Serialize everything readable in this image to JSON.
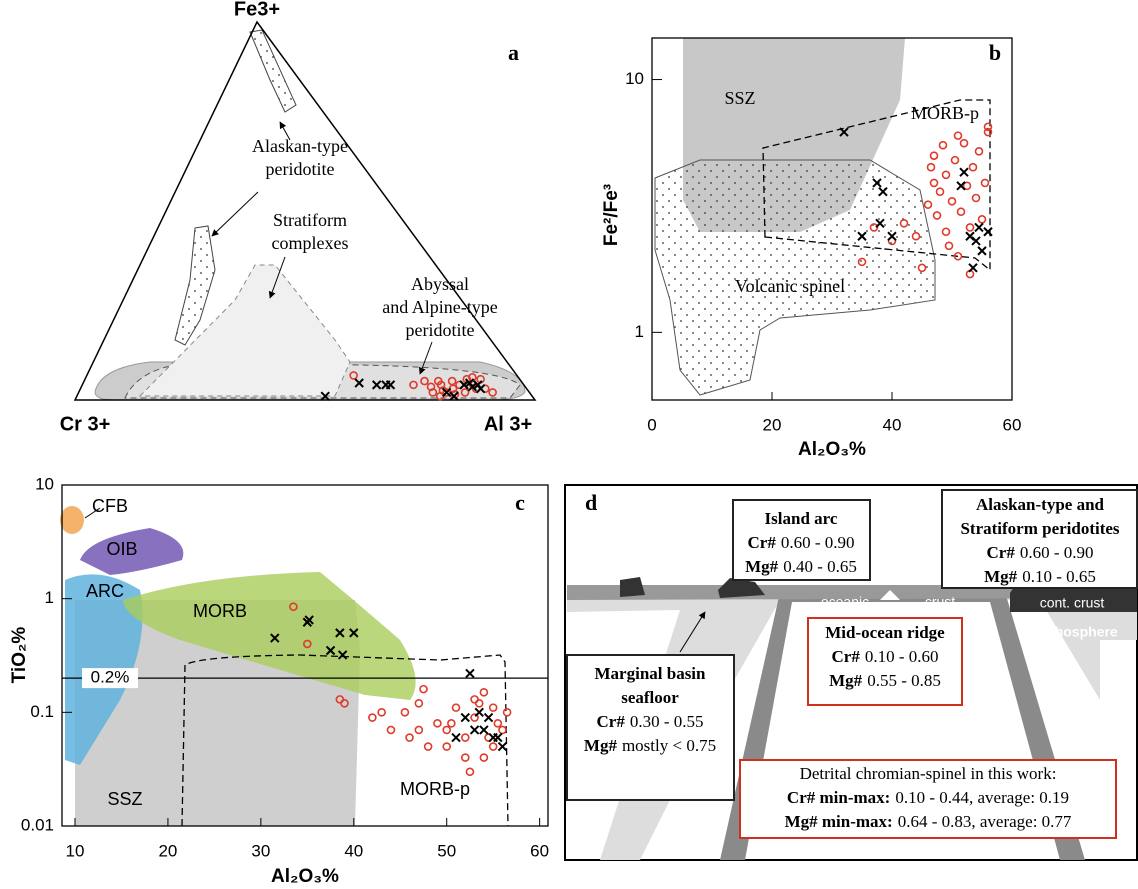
{
  "chart_data": [
    {
      "type": "ternary",
      "panel_label": "a",
      "corners": {
        "top": "Fe3+",
        "left": "Cr 3+",
        "right": "Al 3+"
      },
      "annotations": [
        [
          "Alaskan-type",
          "peridotite"
        ],
        [
          "Stratiform",
          "complexes"
        ],
        [
          "Abyssal",
          "and Alpine-type",
          "peridotite"
        ]
      ],
      "series": [
        {
          "marker": "circle",
          "color": "#e03a2a",
          "al": [
            58,
            72,
            74,
            76,
            77,
            78,
            79,
            80,
            81,
            82,
            83,
            84,
            85,
            86,
            82,
            79,
            77,
            88,
            90,
            84,
            86,
            80
          ],
          "fe": [
            6.5,
            4,
            5,
            3.5,
            5,
            4,
            2.5,
            5,
            3,
            4,
            5.5,
            2,
            4,
            3,
            1.5,
            1,
            2,
            3,
            2,
            6,
            5.5,
            2
          ]
        },
        {
          "marker": "cross",
          "color": "#000000",
          "al": [
            54,
            60,
            64,
            66,
            67,
            80,
            83,
            84,
            85,
            86,
            87,
            82
          ],
          "fe": [
            1,
            4.5,
            4,
            4,
            4,
            2,
            4,
            4.5,
            3.5,
            4,
            3,
            1
          ]
        }
      ]
    },
    {
      "type": "scatter",
      "panel_label": "b",
      "x_label": "Al₂O₃%",
      "y_label": "Fe²/Fe³",
      "xlim": [
        0,
        60
      ],
      "xticks": [
        0,
        20,
        40,
        60
      ],
      "ylim": [
        0.54,
        14.6
      ],
      "yticks": [
        1,
        10
      ],
      "ylog": true,
      "region_labels": [
        "SSZ",
        "MORB-p",
        "Volcanic spinel"
      ],
      "series": [
        {
          "marker": "circle",
          "color": "#e03a2a",
          "x": [
            35,
            37,
            40,
            42,
            44,
            45,
            46,
            46.5,
            47,
            47.5,
            48,
            48.5,
            49,
            49.5,
            50,
            50.5,
            51,
            51.5,
            52,
            52.5,
            53,
            53.5,
            54,
            54.5,
            55,
            55.5,
            56,
            56,
            47,
            49,
            51,
            53
          ],
          "values": [
            1.9,
            2.6,
            2.3,
            2.7,
            2.4,
            1.8,
            3.2,
            4.5,
            5.0,
            2.9,
            3.6,
            5.5,
            4.2,
            2.2,
            3.3,
            4.8,
            2.0,
            3.0,
            5.6,
            3.8,
            2.6,
            4.5,
            3.4,
            5.2,
            2.8,
            3.9,
            6.5,
            6.2,
            3.9,
            2.5,
            6.0,
            1.7
          ]
        },
        {
          "marker": "cross",
          "color": "#000000",
          "x": [
            32,
            37.5,
            38.5,
            38,
            40,
            35,
            52,
            51.5,
            53,
            54,
            54.5,
            55,
            56,
            53.5
          ],
          "values": [
            6.2,
            3.9,
            3.6,
            2.7,
            2.4,
            2.4,
            4.3,
            3.8,
            2.4,
            2.3,
            2.6,
            2.1,
            2.5,
            1.8
          ]
        }
      ]
    },
    {
      "type": "scatter",
      "panel_label": "c",
      "x_label": "Al₂O₃%",
      "y_label": "TiO₂%",
      "xlim": [
        8.6,
        60.9
      ],
      "xticks": [
        10,
        20,
        30,
        40,
        50,
        60
      ],
      "ylim": [
        0.01,
        10
      ],
      "yticks": [
        0.01,
        0.1,
        1,
        10
      ],
      "ylog": true,
      "hline": {
        "value": 0.2,
        "label": "0.2%"
      },
      "region_labels": [
        "CFB",
        "OIB",
        "ARC",
        "MORB",
        "SSZ",
        "MORB-p"
      ],
      "series": [
        {
          "marker": "circle",
          "color": "#e03a2a",
          "x": [
            33.5,
            35,
            38.5,
            39,
            42,
            43,
            44,
            45.5,
            46,
            47,
            47.5,
            47,
            48,
            49,
            50,
            50.5,
            51,
            52,
            52,
            52.5,
            53,
            53.5,
            54,
            54.5,
            55,
            55.5,
            56,
            56.5,
            53,
            50,
            54,
            55
          ],
          "values": [
            0.85,
            0.4,
            0.13,
            0.12,
            0.09,
            0.1,
            0.07,
            0.1,
            0.06,
            0.07,
            0.16,
            0.12,
            0.05,
            0.08,
            0.07,
            0.08,
            0.11,
            0.06,
            0.04,
            0.03,
            0.09,
            0.12,
            0.15,
            0.06,
            0.05,
            0.08,
            0.07,
            0.1,
            0.13,
            0.05,
            0.04,
            0.11
          ]
        },
        {
          "marker": "cross",
          "color": "#000000",
          "x": [
            31.5,
            35,
            35.2,
            37.5,
            38.5,
            38.8,
            40,
            52.5,
            51,
            52,
            53,
            53.5,
            54,
            54.5,
            55,
            56,
            55.5
          ],
          "values": [
            0.45,
            0.62,
            0.65,
            0.35,
            0.5,
            0.32,
            0.5,
            0.22,
            0.06,
            0.09,
            0.07,
            0.1,
            0.07,
            0.09,
            0.06,
            0.05,
            0.06
          ]
        }
      ]
    }
  ],
  "diagram": {
    "panel_label": "d",
    "labels": [
      "oceanic",
      "crust",
      "cont. crust",
      "lithosphere"
    ],
    "boxes": [
      {
        "title": [
          "Island arc"
        ],
        "rows": [
          [
            "Cr#",
            "0.60 - 0.90"
          ],
          [
            "Mg#",
            "0.40 - 0.65"
          ]
        ]
      },
      {
        "title": [
          "Alaskan-type and",
          "Stratiform peridotites"
        ],
        "rows": [
          [
            "Cr#",
            "0.60 - 0.90"
          ],
          [
            "Mg#",
            "0.10 - 0.65"
          ]
        ]
      },
      {
        "title": [
          "Mid-ocean ridge"
        ],
        "rows": [
          [
            "Cr#",
            "0.10 - 0.60"
          ],
          [
            "Mg#",
            "0.55 - 0.85"
          ]
        ]
      },
      {
        "title": [
          "Marginal basin",
          "seafloor"
        ],
        "rows": [
          [
            "Cr#",
            "0.30 - 0.55"
          ],
          [
            "Mg#",
            "mostly < 0.75"
          ]
        ]
      },
      {
        "title": [
          "Detrital chromian-spinel in this work:"
        ],
        "rows": [
          [
            "Cr# min-max:",
            "0.10 - 0.44, average: 0.19"
          ],
          [
            "Mg# min-max:",
            "0.64 - 0.83, average: 0.77"
          ]
        ]
      }
    ]
  }
}
